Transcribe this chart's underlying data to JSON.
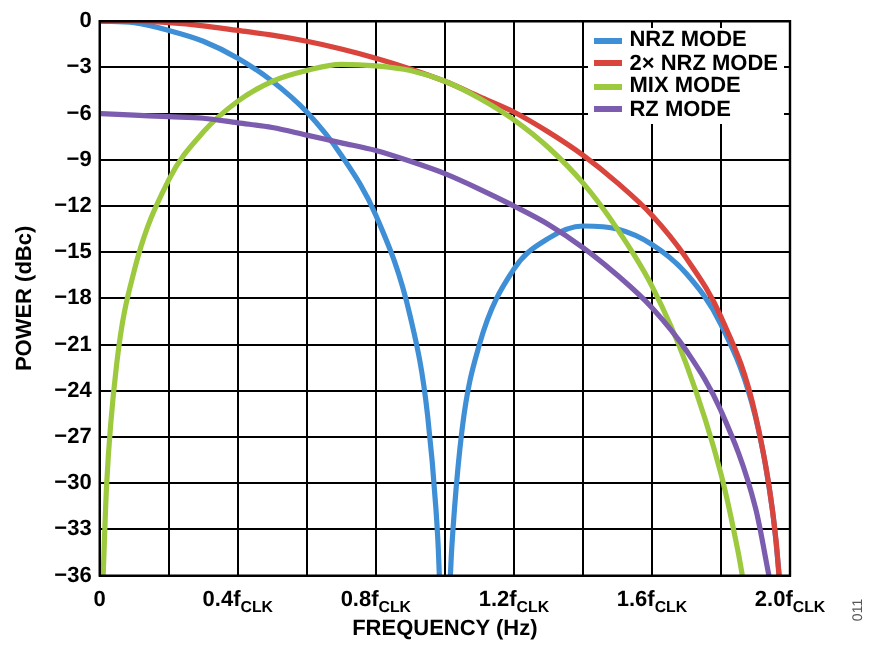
{
  "chart_data": {
    "type": "line",
    "xlabel": "FREQUENCY (Hz)",
    "ylabel": "POWER (dBc)",
    "annotations": [
      "011"
    ],
    "xlim": [
      0,
      2
    ],
    "xticks": [
      0,
      {
        "value": 0.2,
        "label": null
      },
      {
        "value": 0.4,
        "label": "0.4f$_{CLK}$"
      },
      {
        "value": 0.6,
        "label": null
      },
      {
        "value": 0.8,
        "label": "0.8f$_{CLK}$"
      },
      {
        "value": 1.0,
        "label": null
      },
      {
        "value": 1.2,
        "label": "1.2f$_{CLK}$"
      },
      {
        "value": 1.4,
        "label": null
      },
      {
        "value": 1.6,
        "label": "1.6f$_{CLK}$"
      },
      {
        "value": 1.8,
        "label": null
      },
      {
        "value": 2.0,
        "label": "2.0f$_{CLK}$"
      }
    ],
    "ylim": [
      -36,
      0
    ],
    "yticks": [
      0,
      {
        "value": -3,
        "label": "−3"
      },
      {
        "value": -6,
        "label": "−6"
      },
      {
        "value": -9,
        "label": "−9"
      },
      {
        "value": -12,
        "label": "−12"
      },
      {
        "value": -15,
        "label": "−15"
      },
      {
        "value": -18,
        "label": "−18"
      },
      {
        "value": -21,
        "label": "−21"
      },
      {
        "value": -24,
        "label": "−24"
      },
      {
        "value": -27,
        "label": "−27"
      },
      {
        "value": -30,
        "label": "−30"
      },
      {
        "value": -33,
        "label": "−33"
      },
      {
        "value": -36,
        "label": "−36"
      }
    ],
    "grid": true,
    "legend": "top right",
    "marker": "none",
    "line_style": "solid",
    "series": [
      {
        "name": "NRZ MODE",
        "color": "#3f8fd6",
        "x": [
          0,
          0.1,
          0.2,
          0.3,
          0.4,
          0.5,
          0.6,
          0.7,
          0.8,
          0.9,
          0.95,
          0.98,
          0.984,
          null,
          1.016,
          1.02,
          1.05,
          1.1,
          1.2,
          1.3,
          1.4,
          1.5,
          1.6,
          1.7,
          1.8,
          1.9,
          1.95,
          1.969
        ],
        "values": [
          0,
          -0.1,
          -0.6,
          -1.3,
          -2.4,
          -3.9,
          -5.9,
          -8.7,
          -12.6,
          -19.2,
          -25.6,
          -33.8,
          -36,
          null,
          -36,
          -34.2,
          -26.5,
          -21,
          -16.1,
          -14.1,
          -13.3,
          -13.5,
          -14.5,
          -16.4,
          -19.7,
          -25.7,
          -31.9,
          -36
        ]
      },
      {
        "name": "2× NRZ MODE",
        "color": "#d9443c",
        "x": [
          0,
          0.1,
          0.2,
          0.3,
          0.4,
          0.5,
          0.6,
          0.7,
          0.8,
          0.9,
          1.0,
          1.1,
          1.2,
          1.3,
          1.4,
          1.5,
          1.6,
          1.7,
          1.8,
          1.9,
          1.96,
          1.968
        ],
        "values": [
          0,
          0,
          -0.1,
          -0.3,
          -0.6,
          -0.9,
          -1.3,
          -1.8,
          -2.4,
          -3.1,
          -3.9,
          -4.9,
          -5.9,
          -7.2,
          -8.7,
          -10.5,
          -12.6,
          -15.4,
          -19.2,
          -25.6,
          -33.8,
          -36
        ]
      },
      {
        "name": "MIX MODE",
        "color": "#9dc93f",
        "x": [
          0.01,
          0.02,
          0.05,
          0.1,
          0.2,
          0.3,
          0.4,
          0.5,
          0.6,
          0.7,
          0.8,
          0.9,
          1.0,
          1.1,
          1.2,
          1.3,
          1.4,
          1.5,
          1.6,
          1.7,
          1.8,
          1.85,
          1.862
        ],
        "values": [
          -36,
          -30.1,
          -22.1,
          -16.2,
          -10.3,
          -7.2,
          -5.2,
          -3.9,
          -3.2,
          -2.8,
          -2.9,
          -3.2,
          -3.9,
          -5,
          -6.4,
          -8.2,
          -10.5,
          -13.5,
          -17.2,
          -22.3,
          -29.4,
          -34.5,
          -36
        ]
      },
      {
        "name": "RZ MODE",
        "color": "#7b5cae",
        "x": [
          0,
          0.1,
          0.2,
          0.3,
          0.4,
          0.5,
          0.6,
          0.7,
          0.8,
          0.9,
          1.0,
          1.1,
          1.2,
          1.3,
          1.4,
          1.5,
          1.6,
          1.7,
          1.8,
          1.9,
          1.939
        ],
        "values": [
          -6,
          -6.1,
          -6.2,
          -6.3,
          -6.6,
          -6.9,
          -7.4,
          -7.9,
          -8.4,
          -9.1,
          -9.9,
          -10.9,
          -12,
          -13.2,
          -14.7,
          -16.5,
          -18.6,
          -21.4,
          -25.3,
          -31.6,
          -36
        ]
      }
    ]
  }
}
